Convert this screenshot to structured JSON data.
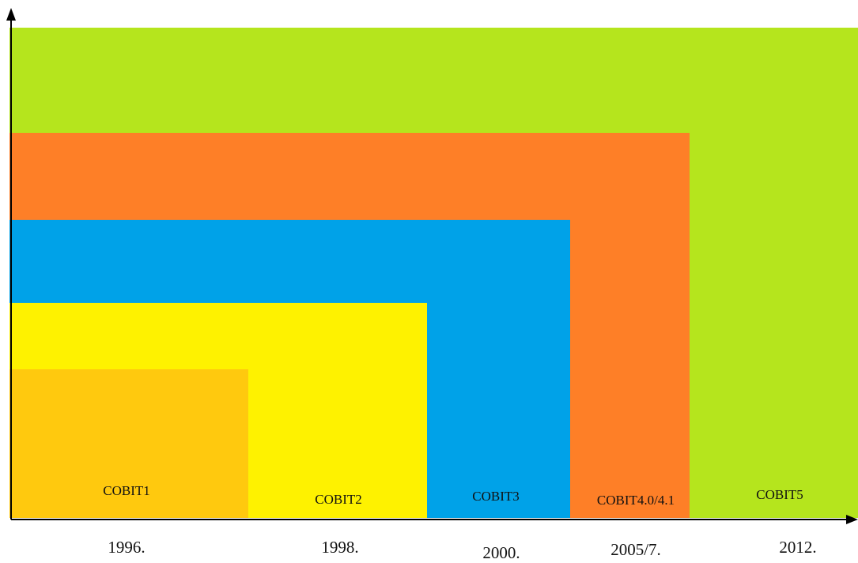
{
  "colors": {
    "cobit5": "#b5e51d",
    "cobit4": "#fe7f27",
    "cobit3": "#00a2e8",
    "cobit2": "#fef200",
    "cobit1": "#ffc90e",
    "axis": "#000000"
  },
  "versions": [
    {
      "label": "COBIT1",
      "year": "1996."
    },
    {
      "label": "COBIT2",
      "year": "1998."
    },
    {
      "label": "COBIT3",
      "year": "2000."
    },
    {
      "label": "COBIT4.0/4.1",
      "year": "2005/7."
    },
    {
      "label": "COBIT5",
      "year": "2012."
    }
  ]
}
